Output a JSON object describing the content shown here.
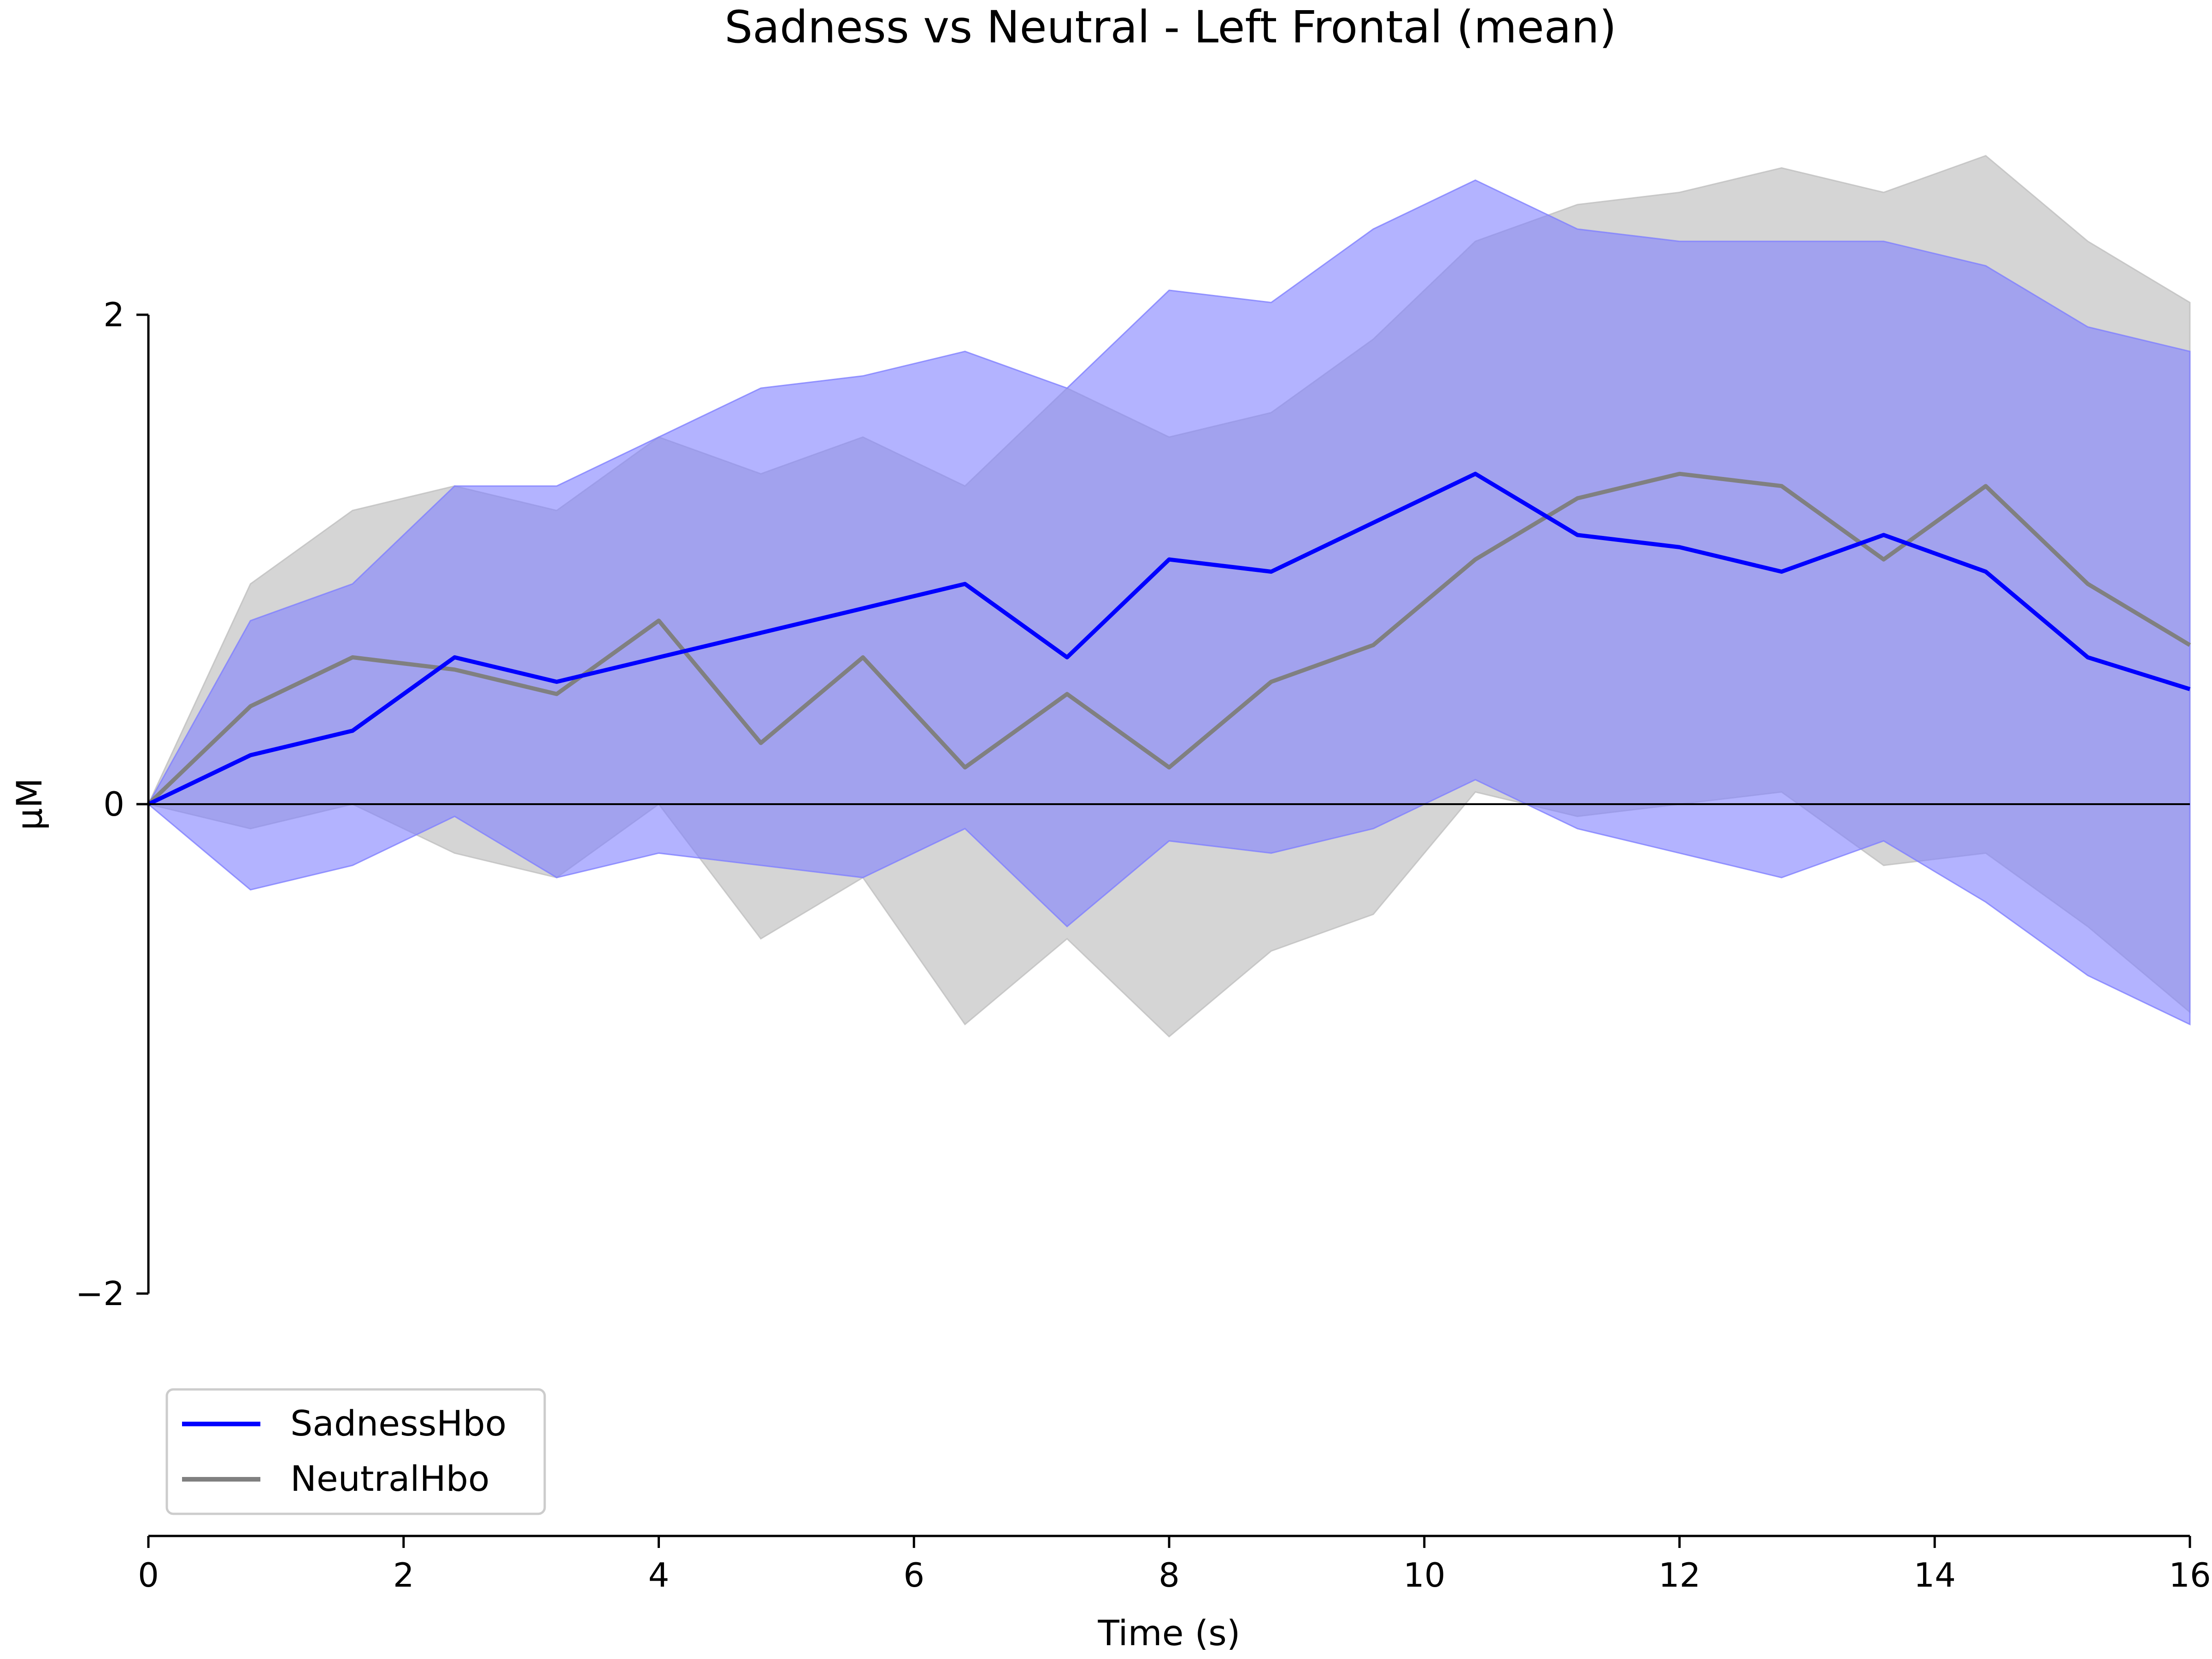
{
  "chart_data": {
    "type": "line",
    "title": "Sadness vs Neutral - Left Frontal (mean)",
    "xlabel": "Time (s)",
    "ylabel": "µM",
    "xlim": [
      0,
      16
    ],
    "ylim": [
      -3.2,
      3.2
    ],
    "xticks": [
      0,
      2,
      4,
      6,
      8,
      10,
      12,
      14,
      16
    ],
    "xtick_labels": [
      "0",
      "2",
      "4",
      "6",
      "8",
      "10",
      "12",
      "14",
      "16"
    ],
    "yticks": [
      -2,
      0,
      2
    ],
    "ytick_labels": [
      "−2",
      "0",
      "2"
    ],
    "grid": false,
    "legend_position": "lower-left",
    "x": [
      0,
      0.8,
      1.6,
      2.4,
      3.2,
      4.0,
      4.8,
      5.6,
      6.4,
      7.2,
      8.0,
      8.8,
      9.6,
      10.4,
      11.2,
      12.0,
      12.8,
      13.6,
      14.4,
      15.2,
      16.0
    ],
    "series": [
      {
        "name": "SadnessHbo",
        "color": "#0000ff",
        "band_color": "#8080ff",
        "values": [
          0.0,
          0.2,
          0.3,
          0.6,
          0.5,
          0.6,
          0.7,
          0.8,
          0.9,
          0.6,
          1.0,
          0.95,
          1.15,
          1.35,
          1.1,
          1.05,
          0.95,
          1.1,
          0.95,
          0.6,
          0.47
        ],
        "upper": [
          0.0,
          0.75,
          0.9,
          1.3,
          1.3,
          1.5,
          1.7,
          1.75,
          1.85,
          1.7,
          2.1,
          2.05,
          2.35,
          2.55,
          2.35,
          2.3,
          2.3,
          2.3,
          2.2,
          1.95,
          1.85
        ],
        "lower": [
          0.0,
          -0.35,
          -0.25,
          -0.05,
          -0.3,
          -0.2,
          -0.25,
          -0.3,
          -0.1,
          -0.5,
          -0.15,
          -0.2,
          -0.1,
          0.1,
          -0.1,
          -0.2,
          -0.3,
          -0.15,
          -0.4,
          -0.7,
          -0.9
        ]
      },
      {
        "name": "NeutralHbo",
        "color": "#808080",
        "band_color": "#bfbfbf",
        "values": [
          0.0,
          0.4,
          0.6,
          0.55,
          0.45,
          0.75,
          0.25,
          0.6,
          0.15,
          0.45,
          0.15,
          0.5,
          0.65,
          1.0,
          1.25,
          1.35,
          1.3,
          1.0,
          1.3,
          0.9,
          0.65
        ],
        "upper": [
          0.0,
          0.9,
          1.2,
          1.3,
          1.2,
          1.5,
          1.35,
          1.5,
          1.3,
          1.7,
          1.5,
          1.6,
          1.9,
          2.3,
          2.45,
          2.5,
          2.6,
          2.5,
          2.65,
          2.3,
          2.05
        ],
        "lower": [
          0.0,
          -0.1,
          0.0,
          -0.2,
          -0.3,
          0.0,
          -0.55,
          -0.3,
          -0.9,
          -0.55,
          -0.95,
          -0.6,
          -0.45,
          0.05,
          -0.05,
          0.0,
          0.05,
          -0.25,
          -0.2,
          -0.5,
          -0.85
        ]
      }
    ]
  }
}
